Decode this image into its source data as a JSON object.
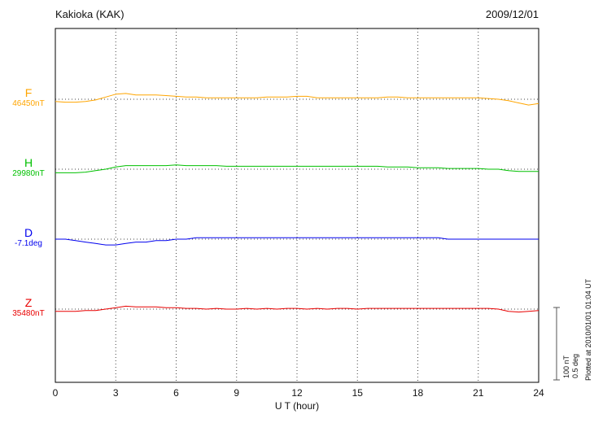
{
  "header": {
    "title": "Kakioka (KAK)",
    "date": "2009/12/01"
  },
  "x_axis": {
    "label": "U T (hour)"
  },
  "channels": [
    {
      "label": "F",
      "value": "46450nT",
      "color": "#ffa500"
    },
    {
      "label": "H",
      "value": "29980nT",
      "color": "#00c000"
    },
    {
      "label": "D",
      "value": "-7.1deg",
      "color": "#0000ee"
    },
    {
      "label": "Z",
      "value": "35480nT",
      "color": "#e80000"
    }
  ],
  "scale_bar": {
    "amplitude_nt": "100 nT",
    "amplitude_deg": "0.5 deg"
  },
  "footer_note": "Plotted at 2010/01/01 01:04 UT",
  "chart_data": {
    "type": "line",
    "title": "Kakioka (KAK) magnetogram",
    "subtitle": "2009/12/01",
    "xlabel": "U T (hour)",
    "xlim": [
      0,
      24
    ],
    "x_ticks": [
      0,
      3,
      6,
      9,
      12,
      15,
      18,
      21,
      24
    ],
    "grid": "dotted vertical lines every 3 h; dotted horizontal baseline per channel",
    "legend_position": "left baseline labels",
    "scale": {
      "nT_per_bar": 100,
      "deg_per_bar": 0.5
    },
    "x": [
      0,
      0.5,
      1,
      1.5,
      2,
      2.5,
      3,
      3.5,
      4,
      4.5,
      5,
      5.5,
      6,
      6.5,
      7,
      7.5,
      8,
      8.5,
      9,
      9.5,
      10,
      10.5,
      11,
      11.5,
      12,
      12.5,
      13,
      13.5,
      14,
      14.5,
      15,
      15.5,
      16,
      16.5,
      17,
      17.5,
      18,
      18.5,
      19,
      19.5,
      20,
      20.5,
      21,
      21.5,
      22,
      22.5,
      23,
      23.5,
      24
    ],
    "series": [
      {
        "name": "F",
        "unit": "nT",
        "baseline": 46450,
        "color": "#ffa500",
        "offsets": [
          -3,
          -4,
          -4,
          -3,
          -1,
          3,
          7,
          8,
          6,
          6,
          6,
          5,
          4,
          3,
          3,
          2,
          2,
          2,
          2,
          2,
          2,
          3,
          3,
          3,
          4,
          4,
          2,
          2,
          2,
          2,
          2,
          2,
          2,
          3,
          3,
          2,
          2,
          2,
          2,
          2,
          2,
          2,
          2,
          1,
          0,
          -2,
          -5,
          -8,
          -6
        ]
      },
      {
        "name": "H",
        "unit": "nT",
        "baseline": 29980,
        "color": "#00c000",
        "offsets": [
          -5,
          -5,
          -5,
          -4,
          -2,
          0,
          3,
          5,
          5,
          5,
          5,
          5,
          6,
          5,
          5,
          5,
          5,
          4,
          4,
          4,
          4,
          4,
          4,
          4,
          4,
          4,
          4,
          4,
          4,
          4,
          4,
          4,
          4,
          3,
          3,
          3,
          2,
          2,
          2,
          1,
          1,
          1,
          1,
          0,
          0,
          -2,
          -3,
          -3,
          -3
        ]
      },
      {
        "name": "D",
        "unit": "deg",
        "baseline": -7.1,
        "color": "#0000ee",
        "offsets": [
          0,
          0,
          -0.01,
          -0.02,
          -0.03,
          -0.04,
          -0.04,
          -0.03,
          -0.02,
          -0.02,
          -0.01,
          -0.01,
          0,
          0,
          0.01,
          0.01,
          0.01,
          0.01,
          0.01,
          0.01,
          0.01,
          0.01,
          0.01,
          0.01,
          0.01,
          0.01,
          0.01,
          0.01,
          0.01,
          0.01,
          0.01,
          0.01,
          0.01,
          0.01,
          0.01,
          0.01,
          0.01,
          0.01,
          0.01,
          0,
          0,
          0,
          0,
          0,
          0,
          0,
          0,
          0,
          0
        ]
      },
      {
        "name": "Z",
        "unit": "nT",
        "baseline": 35480,
        "color": "#e80000",
        "offsets": [
          -3,
          -3,
          -3,
          -2,
          -2,
          0,
          2,
          4,
          3,
          3,
          3,
          2,
          2,
          1,
          1,
          0,
          1,
          0,
          0,
          1,
          0,
          1,
          0,
          1,
          1,
          0,
          1,
          0,
          1,
          1,
          0,
          1,
          1,
          1,
          1,
          1,
          1,
          1,
          1,
          1,
          1,
          1,
          1,
          1,
          0,
          -3,
          -4,
          -3,
          -2
        ]
      }
    ]
  }
}
